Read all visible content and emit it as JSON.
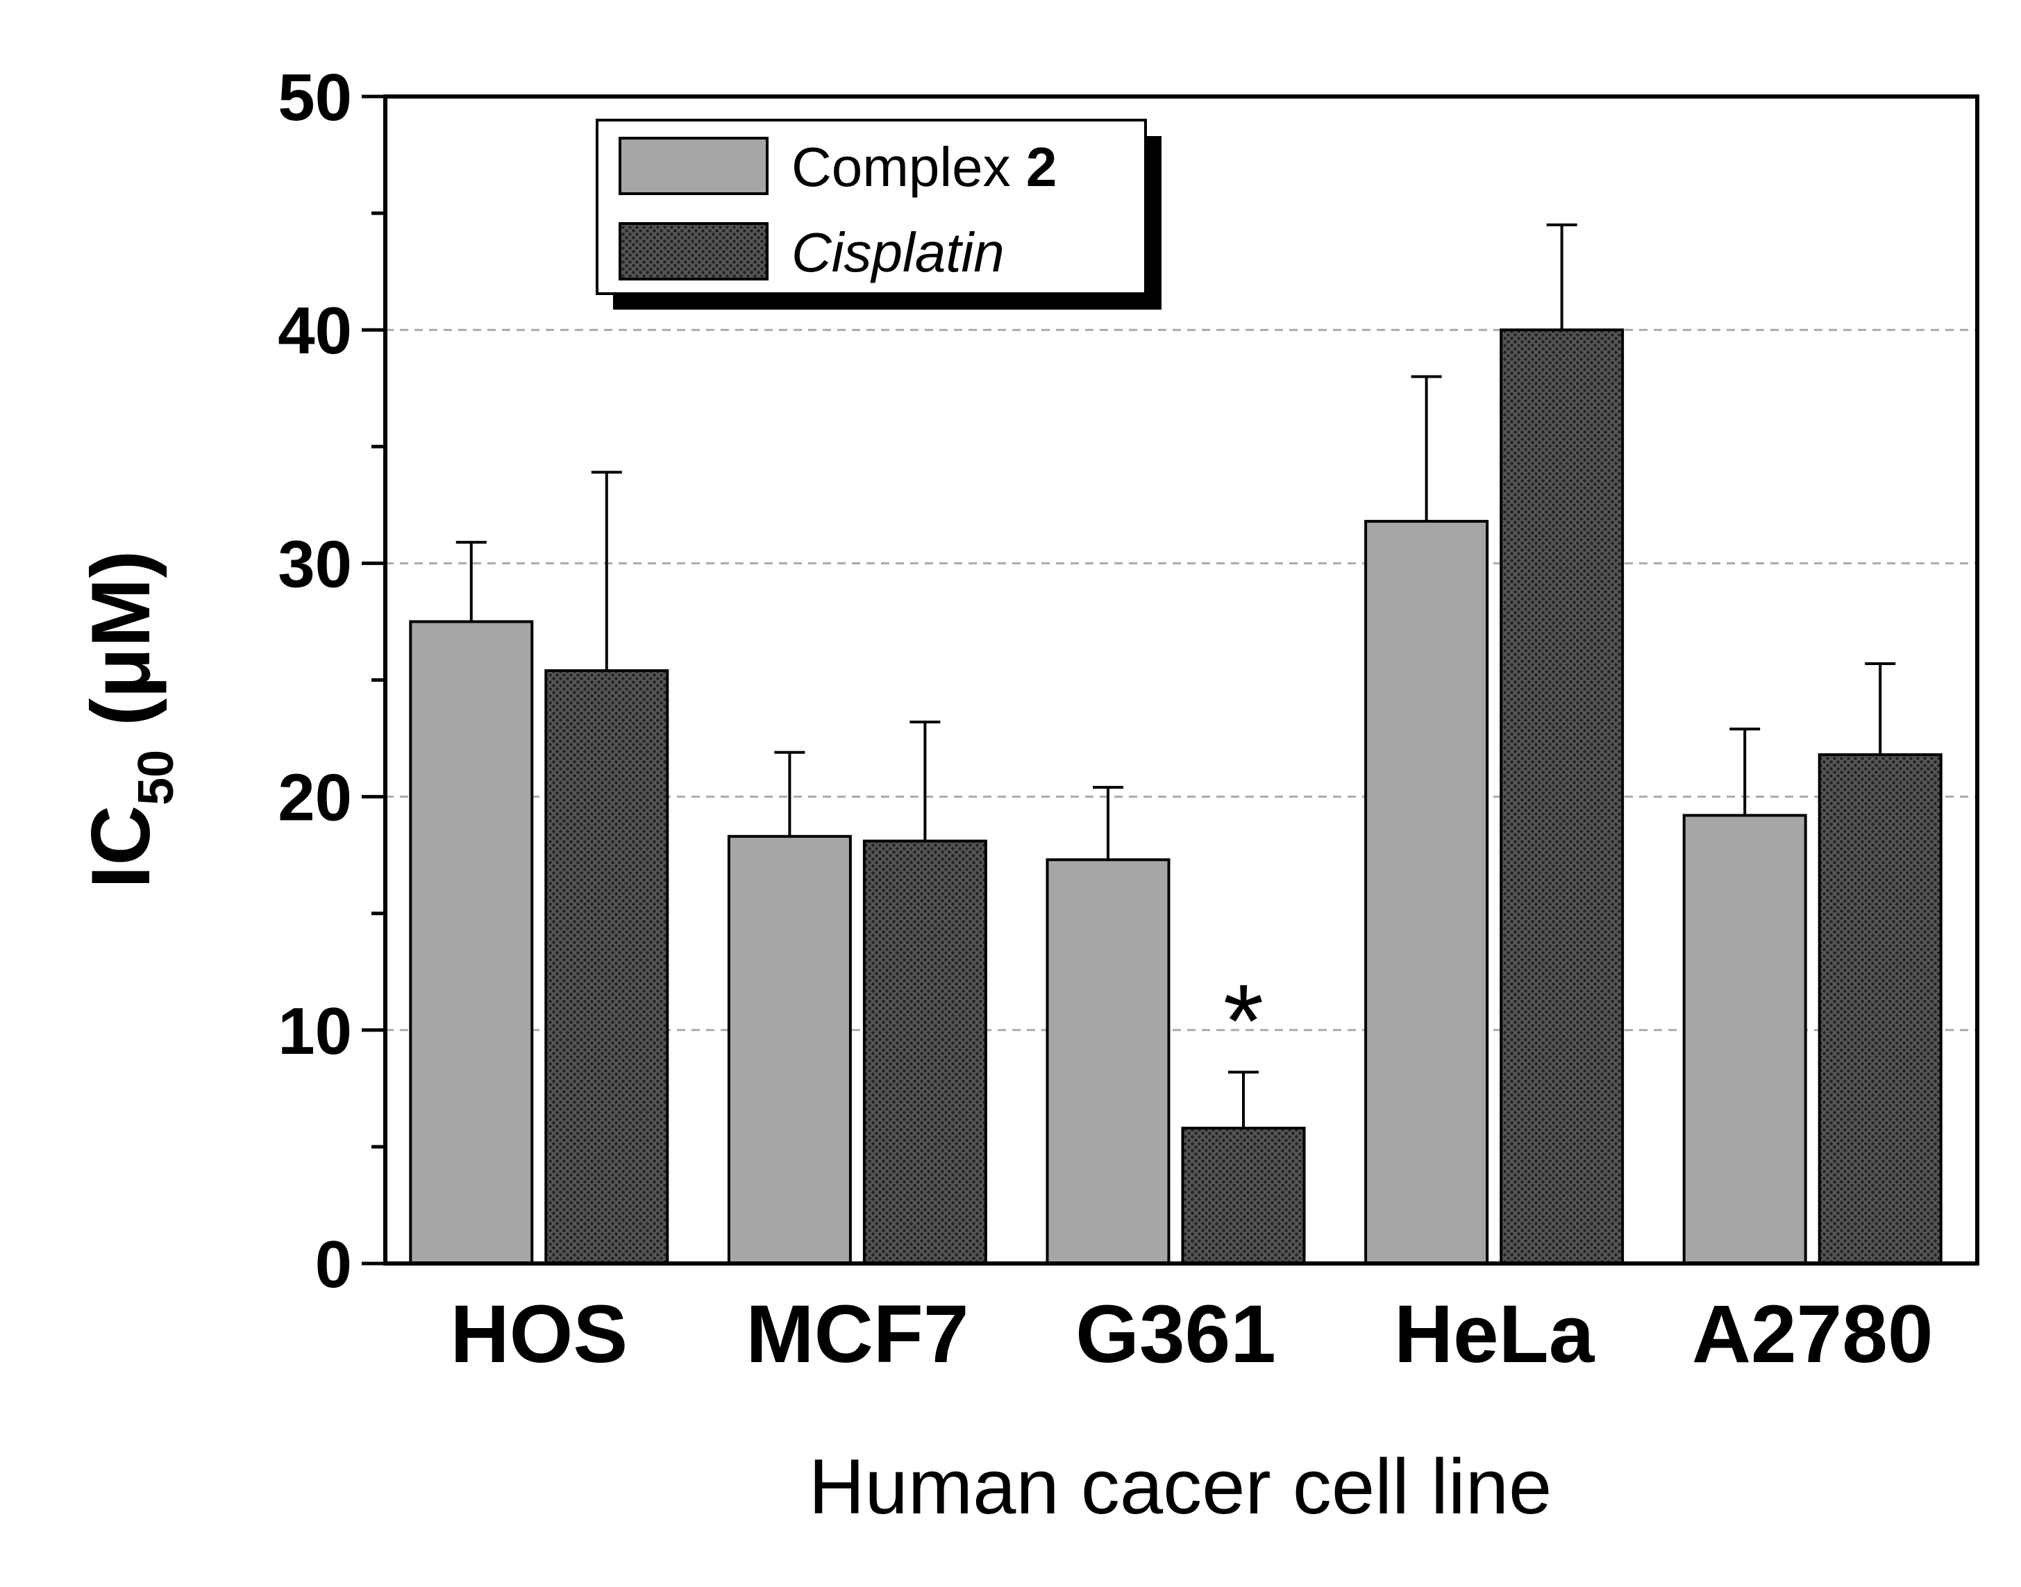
{
  "chart_data": {
    "type": "bar",
    "categories": [
      "HOS",
      "MCF7",
      "G361",
      "HeLa",
      "A2780"
    ],
    "series": [
      {
        "name": "Complex 2",
        "name_parts": [
          "Complex ",
          "2"
        ],
        "values": [
          27.5,
          18.3,
          17.3,
          31.8,
          19.2
        ],
        "errors": [
          3.4,
          3.6,
          3.1,
          6.2,
          3.7
        ],
        "color": "#a6a6a6"
      },
      {
        "name": "Cisplatin",
        "values": [
          25.4,
          18.1,
          5.8,
          40.0,
          21.8
        ],
        "errors": [
          8.5,
          5.1,
          2.4,
          4.5,
          3.9
        ],
        "color": "#3d3d3d"
      }
    ],
    "xlabel": "Human cacer cell line",
    "ylabel": {
      "main": "IC",
      "sub": "50",
      "unit": "(μM)"
    },
    "ylim": [
      0,
      50
    ],
    "yticks": [
      0,
      10,
      20,
      30,
      40,
      50
    ],
    "grid": {
      "horizontal": true,
      "style": "dashed",
      "color": "#aaaaaa"
    },
    "legend": {
      "position": "top-left",
      "shadow": true
    },
    "annotations": [
      {
        "text": "*",
        "category": "G361",
        "series": "Cisplatin"
      }
    ]
  }
}
